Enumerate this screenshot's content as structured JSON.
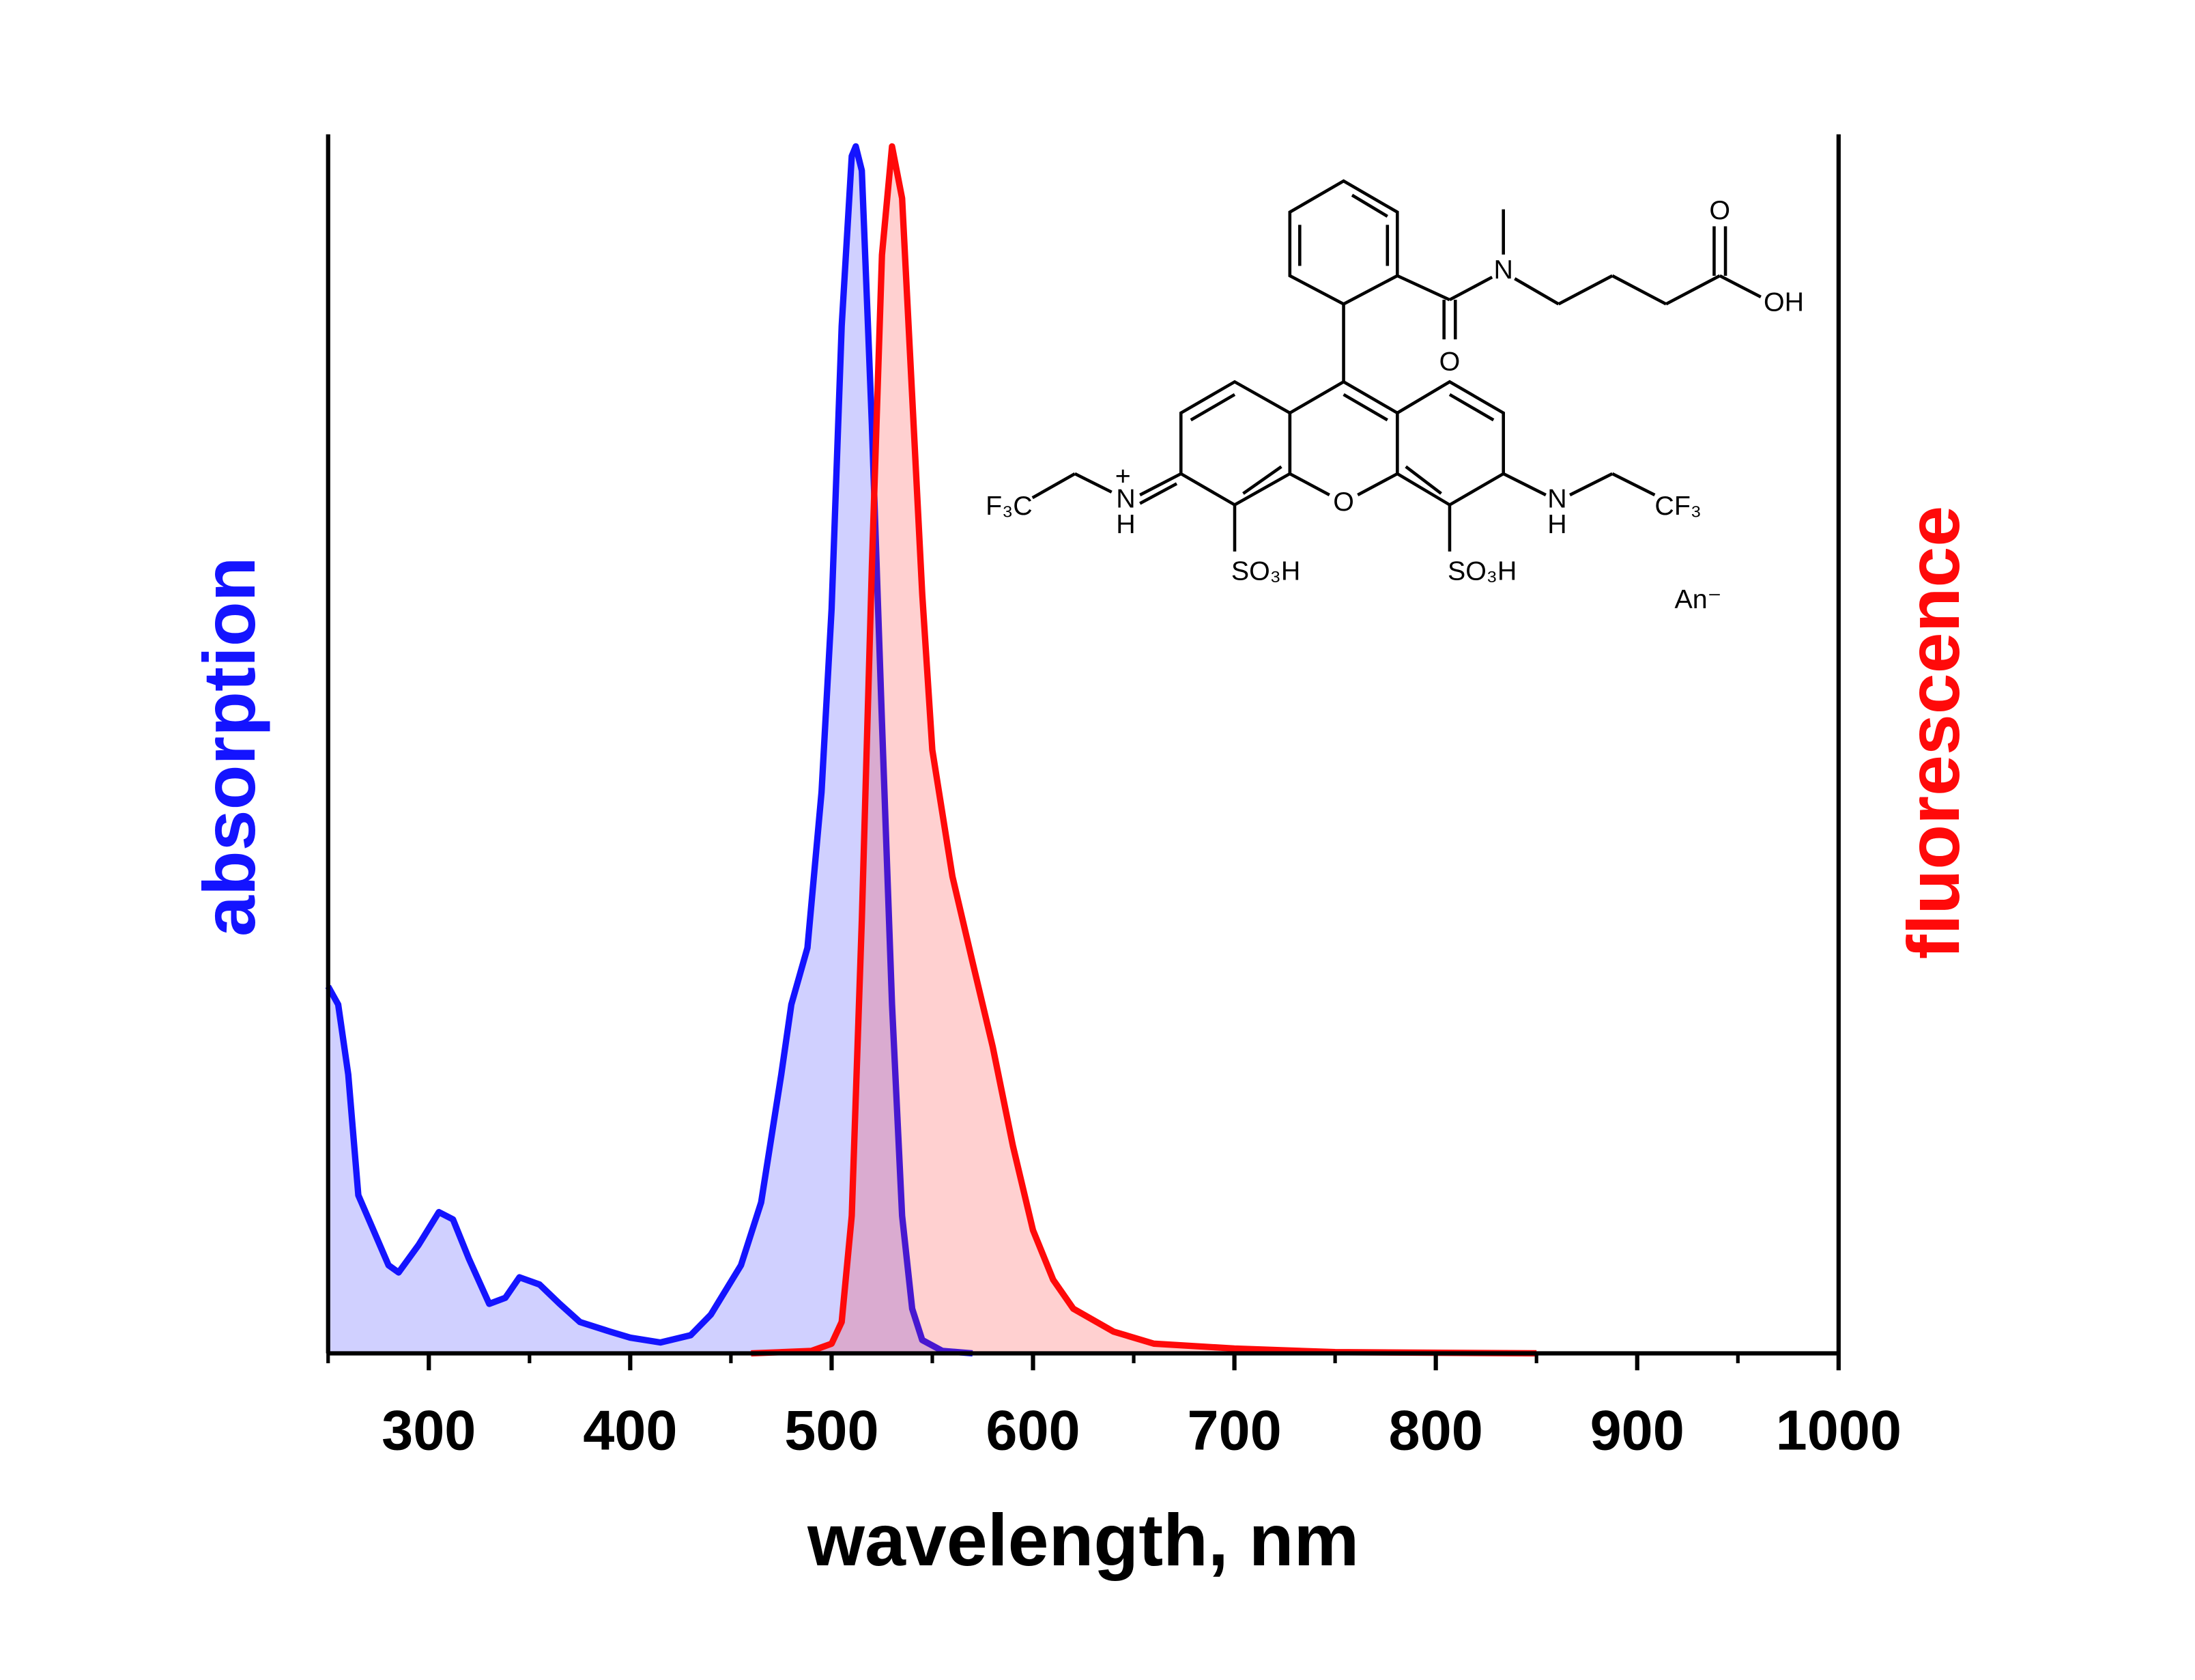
{
  "chart_data": {
    "type": "line",
    "area": true,
    "xlabel": "wavelength, nm",
    "ylabel": "absorption",
    "y2label": "fluorescence",
    "xlim": [
      250,
      1000
    ],
    "xticks": [
      300,
      400,
      500,
      600,
      700,
      800,
      900,
      1000
    ],
    "xminorticks": [
      250,
      350,
      450,
      550,
      650,
      750,
      850,
      950
    ],
    "ylim": [
      0,
      1.01
    ],
    "y2lim": [
      0,
      1.01
    ],
    "series": [
      {
        "name": "absorption",
        "color": "#1414ff",
        "fill": "rgba(40,40,255,0.22)",
        "x": [
          250,
          255,
          260,
          265,
          272,
          280,
          285,
          295,
          305,
          312,
          320,
          330,
          338,
          345,
          355,
          365,
          375,
          390,
          400,
          415,
          430,
          440,
          455,
          465,
          475,
          480,
          488,
          495,
          500,
          505,
          510,
          512,
          515,
          520,
          525,
          530,
          535,
          540,
          545,
          555,
          570
        ],
        "values": [
          0.304,
          0.289,
          0.231,
          0.131,
          0.104,
          0.073,
          0.067,
          0.09,
          0.117,
          0.111,
          0.078,
          0.041,
          0.046,
          0.063,
          0.057,
          0.041,
          0.026,
          0.018,
          0.013,
          0.009,
          0.015,
          0.032,
          0.073,
          0.125,
          0.231,
          0.289,
          0.336,
          0.465,
          0.617,
          0.851,
          0.992,
          1.0,
          0.98,
          0.769,
          0.523,
          0.289,
          0.114,
          0.037,
          0.011,
          0.002,
          0
        ]
      },
      {
        "name": "fluorescence",
        "color": "#ff0a0a",
        "fill": "rgba(255,40,40,0.22)",
        "axis": "y2",
        "x": [
          460,
          490,
          500,
          505,
          510,
          515,
          520,
          525,
          530,
          535,
          540,
          545,
          550,
          560,
          570,
          580,
          590,
          600,
          610,
          620,
          640,
          660,
          700,
          750,
          850
        ],
        "values": [
          0,
          0.002,
          0.008,
          0.026,
          0.114,
          0.359,
          0.652,
          0.91,
          1.0,
          0.957,
          0.793,
          0.629,
          0.5,
          0.395,
          0.324,
          0.254,
          0.172,
          0.102,
          0.061,
          0.037,
          0.018,
          0.008,
          0.004,
          0.001,
          0
        ]
      }
    ]
  },
  "structure": {
    "labels": [
      "O",
      "N",
      "O",
      "OH",
      "O",
      "F₃C",
      "N",
      "+",
      "H",
      "SO₃H",
      "SO₃H",
      "N",
      "H",
      "CF₃",
      "An⁻"
    ]
  }
}
